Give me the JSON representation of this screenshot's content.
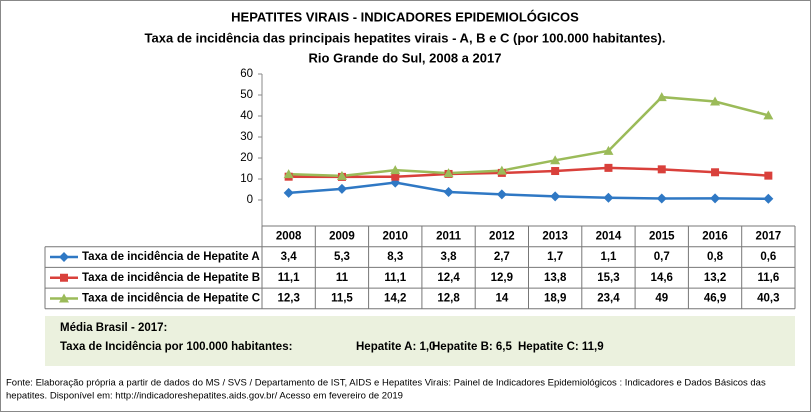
{
  "chart_data": {
    "type": "line",
    "title": "HEPATITES VIRAIS - INDICADORES EPIDEMIOLÓGICOS",
    "subtitle": [
      "Taxa de incidência das principais hepatites virais - A, B e C (por 100.000 habitantes).",
      "Rio Grande do Sul, 2008 a 2017"
    ],
    "categories": [
      "2008",
      "2009",
      "2010",
      "2011",
      "2012",
      "2013",
      "2014",
      "2015",
      "2016",
      "2017"
    ],
    "series": [
      {
        "name": "Taxa de incidência de Hepatite A",
        "color": "#2f78c4",
        "marker": "diamond",
        "values": [
          3.4,
          5.3,
          8.3,
          3.8,
          2.7,
          1.7,
          1.1,
          0.7,
          0.8,
          0.6
        ],
        "value_labels": [
          "3,4",
          "5,3",
          "8,3",
          "3,8",
          "2,7",
          "1,7",
          "1,1",
          "0,7",
          "0,8",
          "0,6"
        ]
      },
      {
        "name": "Taxa de incidência de Hepatite B",
        "color": "#d9403b",
        "marker": "square",
        "values": [
          11.1,
          11,
          11.1,
          12.4,
          12.9,
          13.8,
          15.3,
          14.6,
          13.2,
          11.6
        ],
        "value_labels": [
          "11,1",
          "11",
          "11,1",
          "12,4",
          "12,9",
          "13,8",
          "15,3",
          "14,6",
          "13,2",
          "11,6"
        ]
      },
      {
        "name": "Taxa de incidência de Hepatite C",
        "color": "#9bbb59",
        "marker": "triangle",
        "values": [
          12.3,
          11.5,
          14.2,
          12.8,
          14,
          18.9,
          23.4,
          49,
          46.9,
          40.3
        ],
        "value_labels": [
          "12,3",
          "11,5",
          "14,2",
          "12,8",
          "14",
          "18,9",
          "23,4",
          "49",
          "46,9",
          "40,3"
        ]
      }
    ],
    "ylim": [
      0,
      60
    ],
    "yticks": [
      0,
      10,
      20,
      30,
      40,
      50,
      60
    ],
    "note": {
      "heading": "Média Brasil - 2017:",
      "lead": "Taxa  de Incidência  por 100.000 habitantes:",
      "items": [
        "Hepatite A: 1,0",
        "Hepatite B: 6,5",
        "Hepatite C: 11,9"
      ]
    },
    "source": [
      "Fonte: Elaboração própria a partir de dados do MS / SVS / Departamento de IST, AIDS e Hepatites Virais:  Painel de Indicadores Epidemiológicos : Indicadores e Dados Básicos das",
      "hepatites.  Disponível em: http://indicadoreshepatites.aids.gov.br/      Acesso em fevereiro de 2019"
    ]
  }
}
